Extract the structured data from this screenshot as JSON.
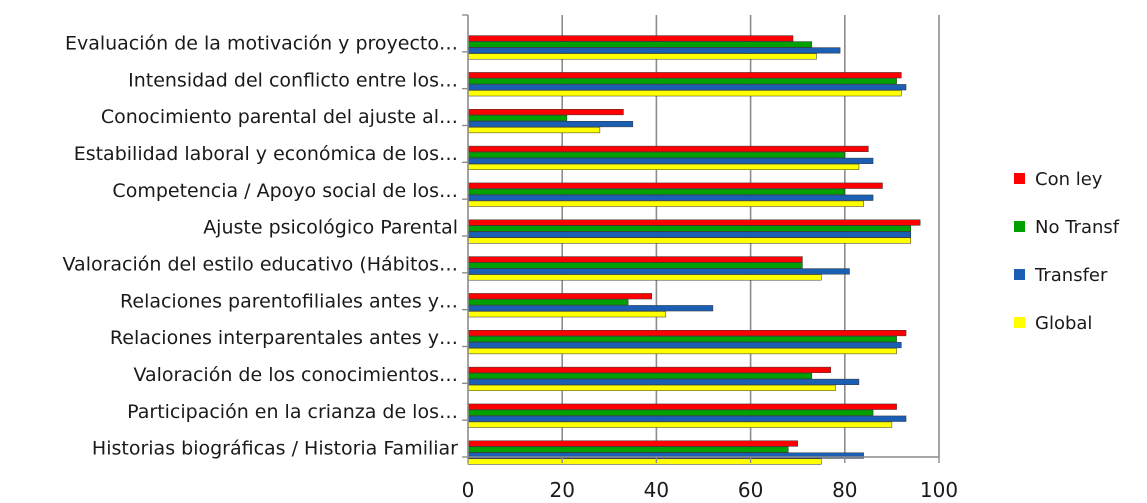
{
  "chart_data": {
    "type": "bar",
    "orientation": "horizontal",
    "title": "",
    "xlabel": "",
    "ylabel": "",
    "xlim": [
      0,
      100
    ],
    "xticks": [
      0,
      20,
      40,
      60,
      80,
      100
    ],
    "xtick_labels": [
      "0",
      "20",
      "40",
      "60",
      "80",
      "100"
    ],
    "grid": "vertical",
    "legend_position": "right",
    "categories": [
      "Evaluación de la motivación y proyecto…",
      "Intensidad del conflicto entre los…",
      "Conocimiento parental del ajuste al…",
      "Estabilidad laboral y económica de los…",
      "Competencia / Apoyo social de los…",
      "Ajuste psicológico Parental",
      "Valoración del estilo educativo (Hábitos…",
      "Relaciones parentofiliales antes  y…",
      "Relaciones interparentales antes y…",
      "Valoración de los conocimientos…",
      "Participación en la crianza de los…",
      "Historias biográficas / Historia Familiar"
    ],
    "series": [
      {
        "name": "Con ley",
        "color": "#ff0000",
        "values": [
          69,
          92,
          33,
          85,
          88,
          96,
          71,
          39,
          93,
          77,
          91,
          70
        ]
      },
      {
        "name": "No Transf",
        "color": "#00a000",
        "values": [
          73,
          91,
          21,
          80,
          80,
          94,
          71,
          34,
          91,
          73,
          86,
          68
        ]
      },
      {
        "name": "Transfer",
        "color": "#1a5fb4",
        "values": [
          79,
          93,
          35,
          86,
          86,
          94,
          81,
          52,
          92,
          83,
          93,
          84
        ]
      },
      {
        "name": "Global",
        "color": "#ffff00",
        "values": [
          74,
          92,
          28,
          83,
          84,
          94,
          75,
          42,
          91,
          78,
          90,
          75
        ]
      }
    ]
  }
}
